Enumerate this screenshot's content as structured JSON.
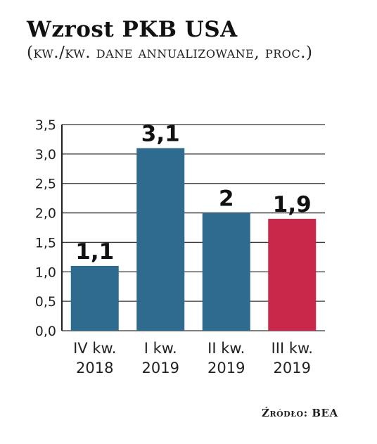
{
  "chart_data": {
    "type": "bar",
    "title": "Wzrost PKB USA",
    "subtitle": "(kw./kw. dane annualizowane, proc.)",
    "categories": [
      [
        "IV kw.",
        "2018"
      ],
      [
        "I kw.",
        "2019"
      ],
      [
        "II kw.",
        "2019"
      ],
      [
        "III kw.",
        "2019"
      ]
    ],
    "values": [
      1.1,
      3.1,
      2.0,
      1.9
    ],
    "data_labels": [
      "1,1",
      "3,1",
      "2",
      "1,9"
    ],
    "bar_colors": [
      "#2e6b8f",
      "#2e6b8f",
      "#2e6b8f",
      "#c9284a"
    ],
    "ylim": [
      0,
      3.5
    ],
    "yticks": [
      0,
      0.5,
      1.0,
      1.5,
      2.0,
      2.5,
      3.0,
      3.5
    ],
    "ytick_labels": [
      "0,0",
      "0,5",
      "1,0",
      "1,5",
      "2,0",
      "2,5",
      "3,0",
      "3,5"
    ],
    "grid": true,
    "source": "Źródło: BEA"
  }
}
